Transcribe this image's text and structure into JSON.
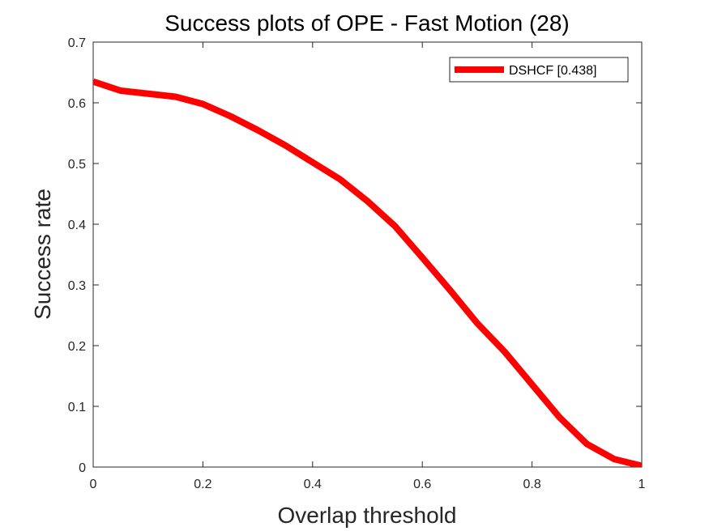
{
  "chart_data": {
    "type": "line",
    "title": "Success plots of OPE - Fast Motion (28)",
    "xlabel": "Overlap threshold",
    "ylabel": "Success rate",
    "xlim": [
      0,
      1
    ],
    "ylim": [
      0,
      0.7
    ],
    "xticks": [
      0,
      0.2,
      0.4,
      0.6,
      0.8,
      1
    ],
    "xtick_labels": [
      "0",
      "0.2",
      "0.4",
      "0.6",
      "0.8",
      "1"
    ],
    "yticks": [
      0,
      0.1,
      0.2,
      0.3,
      0.4,
      0.5,
      0.6,
      0.7
    ],
    "ytick_labels": [
      "0",
      "0.1",
      "0.2",
      "0.3",
      "0.4",
      "0.5",
      "0.6",
      "0.7"
    ],
    "grid": false,
    "legend_position": "top-right",
    "x": [
      0,
      0.05,
      0.1,
      0.15,
      0.2,
      0.25,
      0.3,
      0.35,
      0.4,
      0.45,
      0.5,
      0.55,
      0.6,
      0.65,
      0.7,
      0.75,
      0.8,
      0.85,
      0.9,
      0.95,
      1.0
    ],
    "series": [
      {
        "name": "DSHCF [0.438]",
        "color": "#ff0000",
        "values": [
          0.635,
          0.62,
          0.615,
          0.61,
          0.598,
          0.578,
          0.555,
          0.53,
          0.502,
          0.474,
          0.438,
          0.397,
          0.345,
          0.292,
          0.237,
          0.19,
          0.136,
          0.082,
          0.038,
          0.013,
          0.002
        ]
      }
    ]
  }
}
